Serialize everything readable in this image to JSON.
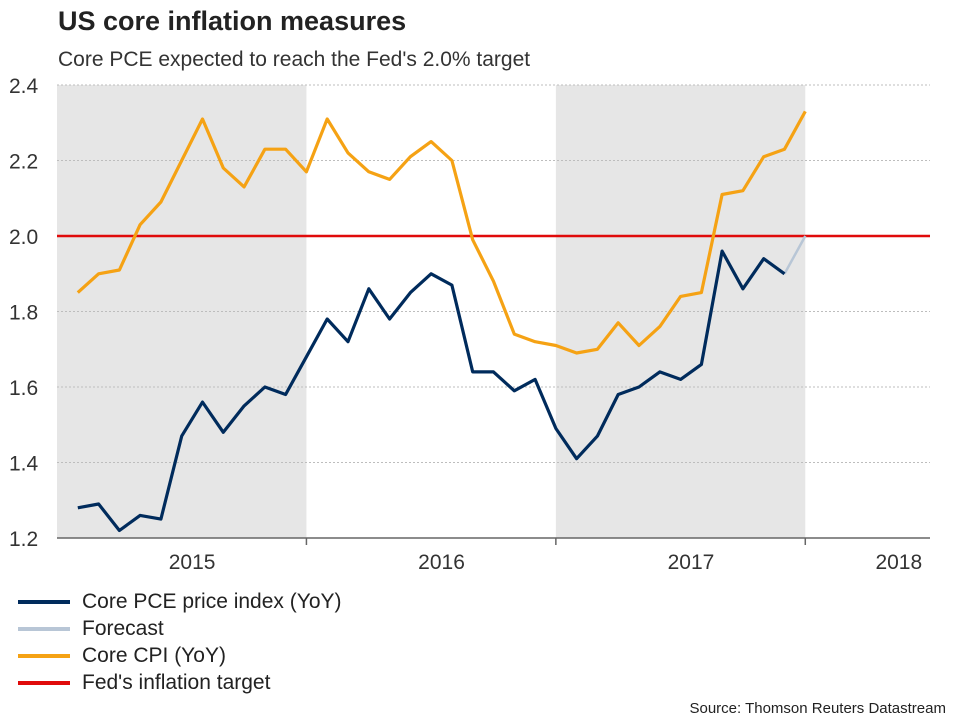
{
  "title": "US core inflation measures",
  "subtitle": "Core PCE expected to reach the Fed's 2.0% target",
  "source": "Source: Thomson Reuters Datastream",
  "colors": {
    "pce": "#002b5c",
    "forecast": "#b8c6d6",
    "cpi": "#f5a214",
    "target": "#e00a0a",
    "shade": "#e6e6e6",
    "grid": "#bdbdbd",
    "axis": "#666666"
  },
  "chart_data": {
    "type": "line",
    "title": "US core inflation measures",
    "xlabel": "",
    "ylabel": "",
    "ylim": [
      1.2,
      2.4
    ],
    "yticks": [
      "1.2",
      "1.4",
      "1.6",
      "1.8",
      "2.0",
      "2.2",
      "2.4"
    ],
    "grid": true,
    "x_start": "Dec 2014",
    "x_end": "Jun 2018",
    "year_labels": [
      {
        "label": "2015",
        "month": 6.5
      },
      {
        "label": "2016",
        "month": 18.5
      },
      {
        "label": "2017",
        "month": 30.5
      },
      {
        "label": "2018",
        "month": 40.5
      }
    ],
    "shaded_periods": [
      {
        "from": 0,
        "to": 12
      },
      {
        "from": 24,
        "to": 36
      }
    ],
    "series": [
      {
        "name": "Core PCE price index (YoY)",
        "start_month": 1,
        "values": [
          1.28,
          1.29,
          1.22,
          1.26,
          1.25,
          1.47,
          1.56,
          1.48,
          1.55,
          1.6,
          1.58,
          1.68,
          1.78,
          1.72,
          1.86,
          1.78,
          1.85,
          1.9,
          1.87,
          1.64,
          1.64,
          1.59,
          1.62,
          1.49,
          1.41,
          1.47,
          1.58,
          1.6,
          1.64,
          1.62,
          1.66,
          1.96,
          1.86,
          1.94,
          1.9
        ]
      },
      {
        "name": "Forecast",
        "start_month": 35,
        "values": [
          1.9,
          2.0
        ]
      },
      {
        "name": "Core CPI (YoY)",
        "start_month": 1,
        "values": [
          1.85,
          1.9,
          1.91,
          2.03,
          2.09,
          2.2,
          2.31,
          2.18,
          2.13,
          2.23,
          2.23,
          2.17,
          2.31,
          2.22,
          2.17,
          2.15,
          2.21,
          2.25,
          2.2,
          1.99,
          1.88,
          1.74,
          1.72,
          1.71,
          1.69,
          1.7,
          1.77,
          1.71,
          1.76,
          1.84,
          1.85,
          2.11,
          2.12,
          2.21,
          2.23,
          2.33
        ]
      },
      {
        "name": "Fed's inflation target",
        "constant": 2.0
      }
    ]
  },
  "legend": [
    {
      "label": "Core PCE price index (YoY)"
    },
    {
      "label": "Forecast"
    },
    {
      "label": "Core CPI (YoY)"
    },
    {
      "label": "Fed's inflation target"
    }
  ]
}
